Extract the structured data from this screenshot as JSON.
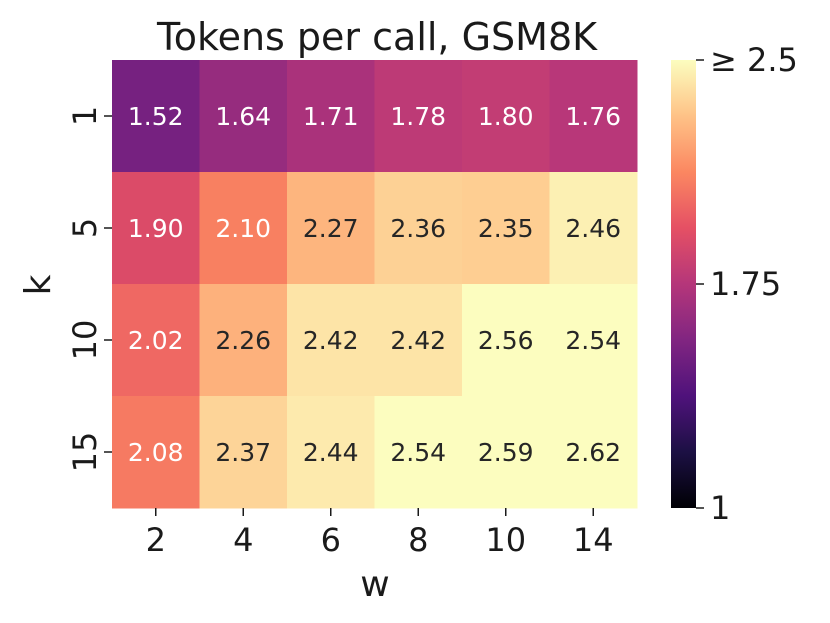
{
  "chart_data": {
    "type": "heatmap",
    "title": "Tokens per call, GSM8K",
    "xlabel": "w",
    "ylabel": "k",
    "x_categories": [
      "2",
      "4",
      "6",
      "8",
      "10",
      "14"
    ],
    "y_categories": [
      "1",
      "5",
      "10",
      "15"
    ],
    "values": [
      [
        1.52,
        1.64,
        1.71,
        1.78,
        1.8,
        1.76
      ],
      [
        1.9,
        2.1,
        2.27,
        2.36,
        2.35,
        2.46
      ],
      [
        2.02,
        2.26,
        2.42,
        2.42,
        2.56,
        2.54
      ],
      [
        2.08,
        2.37,
        2.44,
        2.54,
        2.59,
        2.62
      ]
    ],
    "cell_labels": [
      [
        "1.52",
        "1.64",
        "1.71",
        "1.78",
        "1.80",
        "1.76"
      ],
      [
        "1.90",
        "2.10",
        "2.27",
        "2.36",
        "2.35",
        "2.46"
      ],
      [
        "2.02",
        "2.26",
        "2.42",
        "2.42",
        "2.56",
        "2.54"
      ],
      [
        "2.08",
        "2.37",
        "2.44",
        "2.54",
        "2.59",
        "2.62"
      ]
    ],
    "colormap": "magma",
    "color_range": [
      1,
      2.5
    ],
    "colorbar": {
      "ticks": [
        1,
        1.75,
        2.5
      ],
      "tick_labels": [
        "1",
        "1.75",
        "≥ 2.5"
      ]
    },
    "grid": false,
    "light_text_color": "#ffffff",
    "dark_text_color": "#262626"
  }
}
